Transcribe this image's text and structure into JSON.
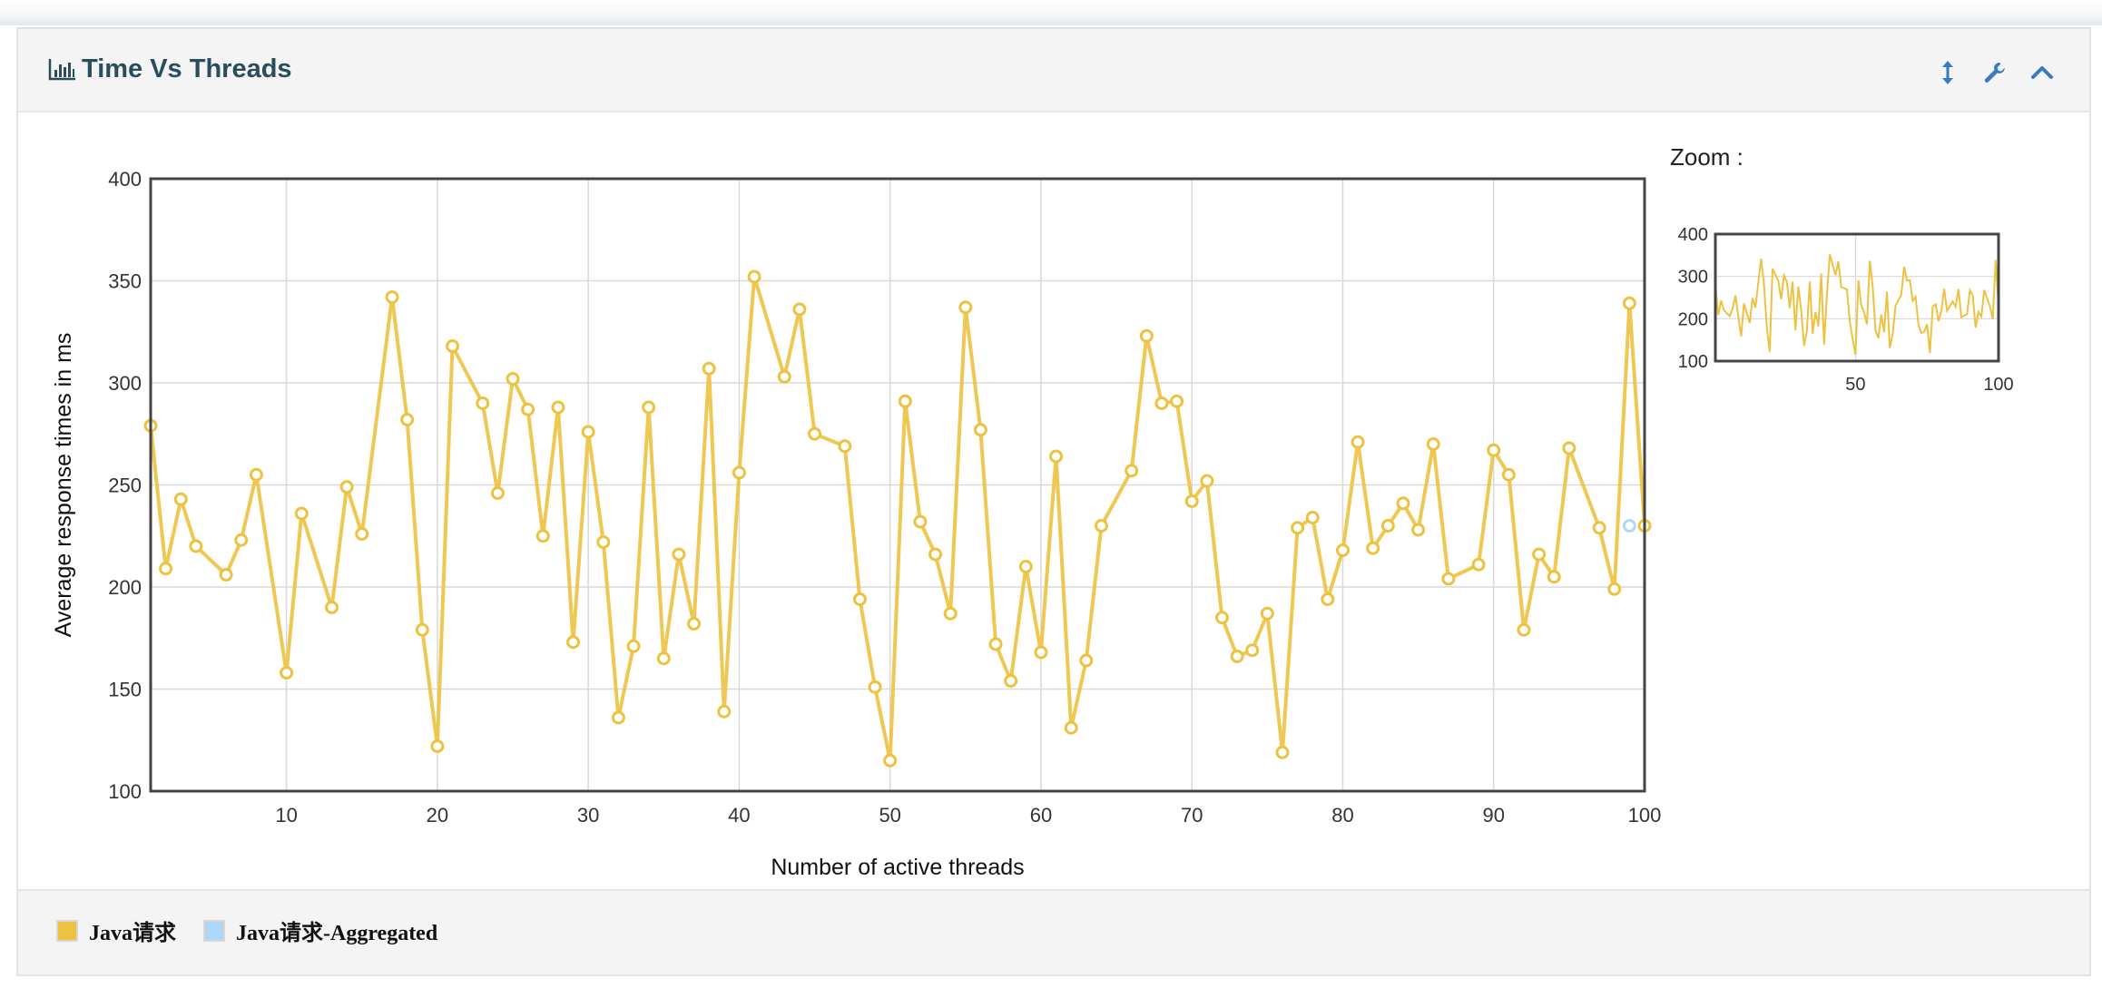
{
  "panel": {
    "title": "Time Vs Threads"
  },
  "legend": [
    {
      "label": "Java请求",
      "color": "#edc240"
    },
    {
      "label": "Java请求-Aggregated",
      "color": "#afd8f8"
    }
  ],
  "zoom": {
    "label": "Zoom :",
    "yticks": [
      100,
      200,
      300,
      400
    ],
    "xticks": [
      50,
      100
    ]
  },
  "chart_data": {
    "type": "line",
    "xlabel": "Number of active threads",
    "ylabel": "Average response times in ms",
    "xlim": [
      1,
      100
    ],
    "ylim": [
      100,
      400
    ],
    "xticks": [
      10,
      20,
      30,
      40,
      50,
      60,
      70,
      80,
      90,
      100
    ],
    "yticks": [
      100,
      150,
      200,
      250,
      300,
      350,
      400
    ],
    "grid": true,
    "legend_position": "bottom",
    "series": [
      {
        "name": "Java请求",
        "color": "#edc240",
        "x": [
          1,
          2,
          3,
          4,
          6,
          7,
          8,
          10,
          11,
          13,
          14,
          15,
          17,
          18,
          19,
          20,
          21,
          23,
          24,
          25,
          26,
          27,
          28,
          29,
          30,
          31,
          32,
          33,
          34,
          35,
          36,
          37,
          38,
          39,
          40,
          41,
          43,
          44,
          45,
          47,
          48,
          49,
          50,
          51,
          52,
          53,
          54,
          55,
          56,
          57,
          58,
          59,
          60,
          61,
          62,
          63,
          64,
          66,
          67,
          68,
          69,
          70,
          71,
          72,
          73,
          74,
          75,
          76,
          77,
          78,
          79,
          80,
          81,
          82,
          83,
          84,
          85,
          86,
          87,
          89,
          90,
          91,
          92,
          93,
          94,
          95,
          97,
          98,
          99,
          100
        ],
        "y": [
          279,
          209,
          243,
          220,
          206,
          223,
          255,
          158,
          236,
          190,
          249,
          226,
          342,
          282,
          179,
          122,
          318,
          290,
          246,
          302,
          287,
          225,
          288,
          173,
          276,
          222,
          136,
          171,
          288,
          165,
          216,
          182,
          307,
          139,
          256,
          352,
          303,
          336,
          275,
          269,
          194,
          151,
          115,
          291,
          232,
          216,
          187,
          337,
          277,
          172,
          154,
          210,
          168,
          264,
          131,
          164,
          230,
          257,
          323,
          290,
          291,
          242,
          252,
          185,
          166,
          169,
          187,
          119,
          229,
          234,
          194,
          218,
          271,
          219,
          230,
          241,
          228,
          270,
          204,
          211,
          267,
          255,
          179,
          216,
          205,
          268,
          229,
          199,
          339,
          230
        ]
      },
      {
        "name": "Java请求-Aggregated",
        "color": "#afd8f8",
        "x": [
          99
        ],
        "y": [
          230
        ]
      }
    ]
  }
}
